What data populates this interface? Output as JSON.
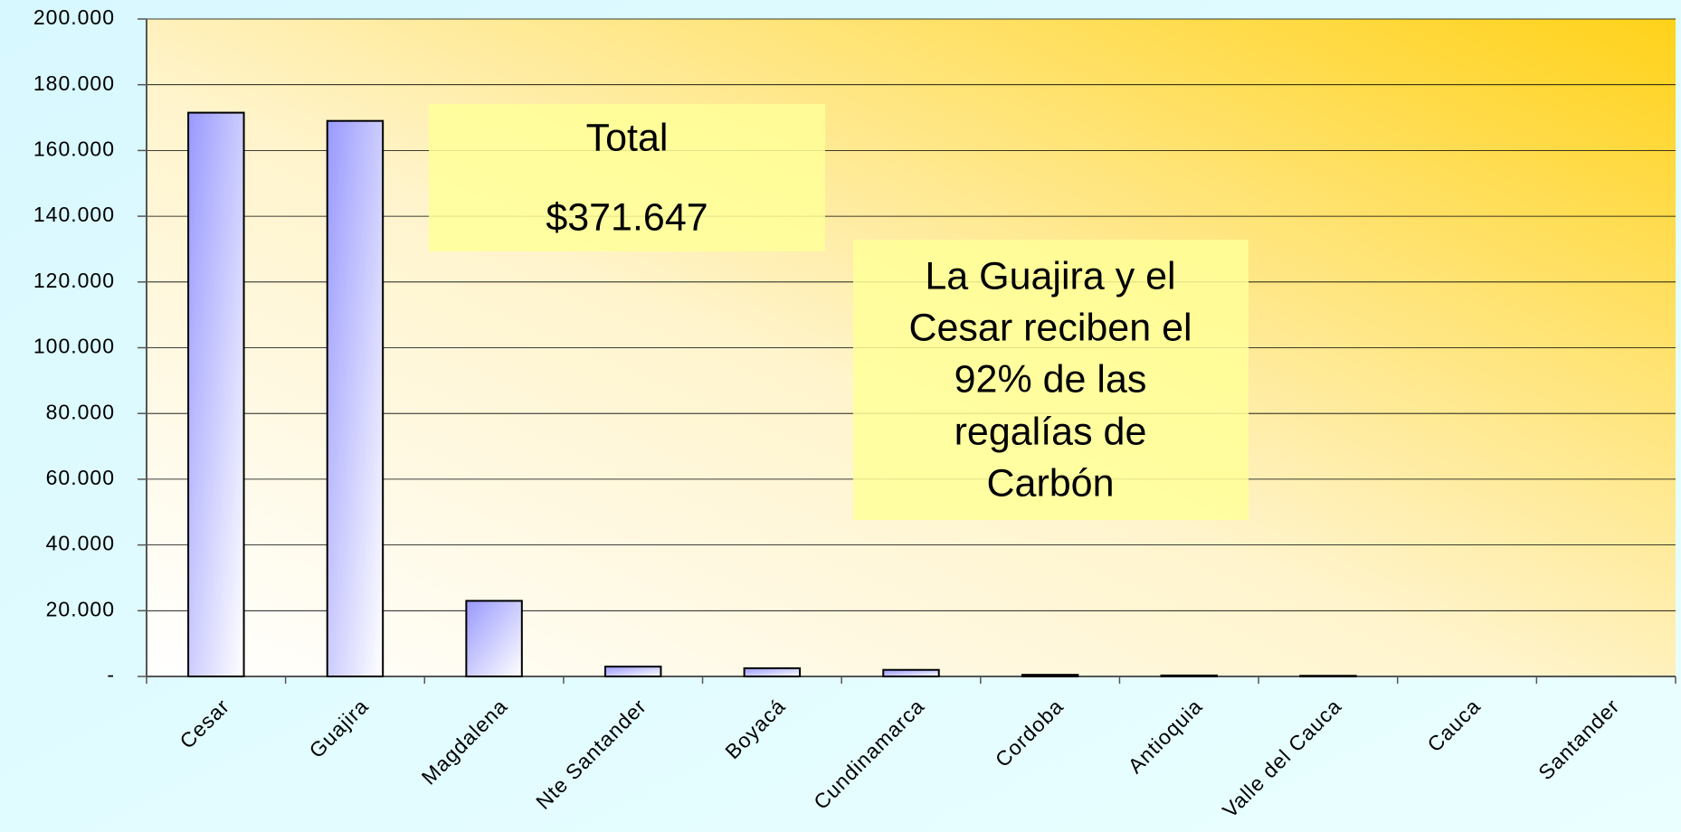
{
  "chart_data": {
    "type": "bar",
    "categories": [
      "Cesar",
      "Guajira",
      "Magdalena",
      "Nte Santander",
      "Boyacá",
      "Cundinamarca",
      "Cordoba",
      "Antioquia",
      "Valle del Cauca",
      "Cauca",
      "Santander"
    ],
    "values": [
      171500,
      169000,
      23000,
      3000,
      2500,
      2000,
      500,
      300,
      200,
      0,
      0
    ],
    "color": "#9999ff",
    "ylim": [
      0,
      200000
    ],
    "yticks": [
      {
        "value": 0,
        "label": "-"
      },
      {
        "value": 20000,
        "label": "20.000"
      },
      {
        "value": 40000,
        "label": "40.000"
      },
      {
        "value": 60000,
        "label": "60.000"
      },
      {
        "value": 80000,
        "label": "80.000"
      },
      {
        "value": 100000,
        "label": "100.000"
      },
      {
        "value": 120000,
        "label": "120.000"
      },
      {
        "value": 140000,
        "label": "140.000"
      },
      {
        "value": 160000,
        "label": "160.000"
      },
      {
        "value": 180000,
        "label": "180.000"
      },
      {
        "value": 200000,
        "label": "200.000"
      }
    ],
    "grid": true,
    "annotations": [
      {
        "lines": [
          "Total",
          "$371.647"
        ]
      },
      {
        "lines": [
          "La Guajira y el",
          "Cesar reciben el",
          "92% de las",
          "regalías de",
          "Carbón"
        ]
      }
    ]
  }
}
